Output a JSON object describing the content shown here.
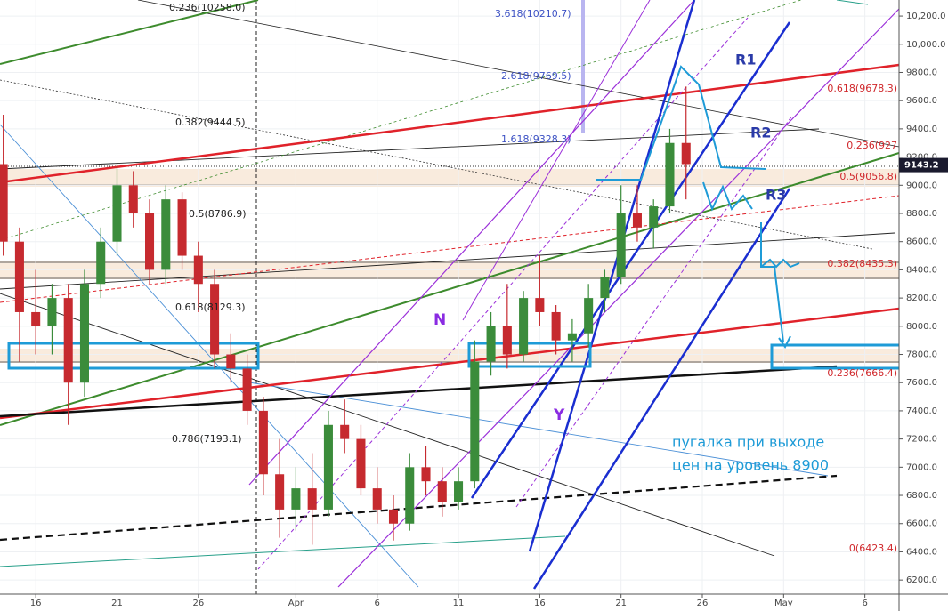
{
  "chart_data": {
    "type": "candlestick",
    "up_color": "#3b8c3b",
    "down_color": "#c62a2f",
    "xlim": [
      -0.2,
      55.1
    ],
    "ylim": [
      6100,
      10314
    ],
    "xticks": [
      {
        "value": 2,
        "label": "16"
      },
      {
        "value": 7,
        "label": "21"
      },
      {
        "value": 12,
        "label": "26"
      },
      {
        "value": 18,
        "label": "Apr"
      },
      {
        "value": 23,
        "label": "6"
      },
      {
        "value": 28,
        "label": "11"
      },
      {
        "value": 33,
        "label": "16"
      },
      {
        "value": 38,
        "label": "21"
      },
      {
        "value": 43,
        "label": "26"
      },
      {
        "value": 48,
        "label": "May"
      },
      {
        "value": 53,
        "label": "6"
      }
    ],
    "yticks": [
      {
        "value": 6200,
        "label": "6200.0"
      },
      {
        "value": 6400,
        "label": "6400.0"
      },
      {
        "value": 6600,
        "label": "6600.0"
      },
      {
        "value": 6800,
        "label": "6800.0"
      },
      {
        "value": 7000,
        "label": "7000.0"
      },
      {
        "value": 7200,
        "label": "7200.0"
      },
      {
        "value": 7400,
        "label": "7400.0"
      },
      {
        "value": 7600,
        "label": "7600.0"
      },
      {
        "value": 7800,
        "label": "7800.0"
      },
      {
        "value": 8000,
        "label": "8000.0"
      },
      {
        "value": 8200,
        "label": "8200.0"
      },
      {
        "value": 8400,
        "label": "8400.0"
      },
      {
        "value": 8600,
        "label": "8600.0"
      },
      {
        "value": 8800,
        "label": "8800.0"
      },
      {
        "value": 9000,
        "label": "9000.0"
      },
      {
        "value": 9200,
        "label": "9200.0"
      },
      {
        "value": 9400,
        "label": "9400.0"
      },
      {
        "value": 9600,
        "label": "9600.0"
      },
      {
        "value": 9800,
        "label": "9800.0"
      },
      {
        "value": 10000,
        "label": "10,000.0"
      },
      {
        "value": 10200,
        "label": "10,200.0"
      }
    ],
    "last_price": 9143.2,
    "x": [
      0,
      1,
      2,
      3,
      4,
      5,
      6,
      7,
      8,
      9,
      10,
      11,
      12,
      13,
      14,
      15,
      16,
      17,
      18,
      19,
      20,
      21,
      22,
      23,
      24,
      25,
      26,
      27,
      28,
      29,
      30,
      31,
      32,
      33,
      34,
      35,
      36,
      37,
      38,
      39,
      40,
      41,
      42
    ],
    "open": [
      9150,
      8600,
      8100,
      8000,
      8200,
      7600,
      8300,
      8600,
      9000,
      8800,
      8400,
      8900,
      8500,
      8300,
      7800,
      7700,
      7400,
      6950,
      6700,
      6850,
      6700,
      7300,
      7200,
      6850,
      6700,
      6600,
      7000,
      6900,
      6750,
      6900,
      7750,
      8000,
      7800,
      8200,
      8100,
      7900,
      7950,
      8200,
      8350,
      8800,
      8700,
      8850,
      9300
    ],
    "high": [
      9500,
      8700,
      8400,
      8300,
      8300,
      8400,
      8700,
      9150,
      9100,
      8900,
      9000,
      8950,
      8600,
      8400,
      7950,
      7800,
      7500,
      7200,
      7000,
      7100,
      7400,
      7480,
      7300,
      7000,
      6800,
      7100,
      7150,
      7000,
      7000,
      7900,
      8100,
      8300,
      8250,
      8500,
      8150,
      8050,
      8300,
      8400,
      9000,
      9000,
      8900,
      9400,
      9700
    ],
    "low": [
      8500,
      7750,
      7800,
      7800,
      7300,
      7500,
      8200,
      8500,
      8700,
      8300,
      8300,
      8400,
      8100,
      7700,
      7600,
      7300,
      6800,
      6500,
      6550,
      6450,
      6650,
      7100,
      6800,
      6600,
      6480,
      6550,
      6800,
      6650,
      6700,
      6850,
      7650,
      7700,
      7750,
      8000,
      7800,
      7750,
      7850,
      8100,
      8300,
      8600,
      8550,
      8800,
      8900
    ],
    "close": [
      8600,
      8100,
      8000,
      8200,
      7600,
      8300,
      8600,
      9000,
      8800,
      8400,
      8900,
      8500,
      8300,
      7800,
      7700,
      7400,
      6950,
      6700,
      6850,
      6700,
      7300,
      7200,
      6850,
      6700,
      6600,
      7000,
      6900,
      6750,
      6900,
      7750,
      8000,
      7800,
      8200,
      8100,
      7900,
      7950,
      8200,
      8350,
      8800,
      8700,
      8850,
      9300,
      9150
    ],
    "annotations": [
      "0.236(10258.0)",
      "0.382(9444.5)",
      "0.5(8786.9)",
      "0.618(8129.3)",
      "0.786(7193.1)",
      "3.618(10210.7)",
      "2.618(9769.5)",
      "1.618(9328.3)",
      "0.618(9678.3)",
      "0.236(927",
      "0.5(9056.8)",
      "0.382(8435.3)",
      "0.236(7666.4)",
      "0(6423.4)",
      "R1",
      "R2",
      "R3",
      "N",
      "Y",
      "пугалка при выходе",
      "цен на уровень 8900"
    ]
  }
}
